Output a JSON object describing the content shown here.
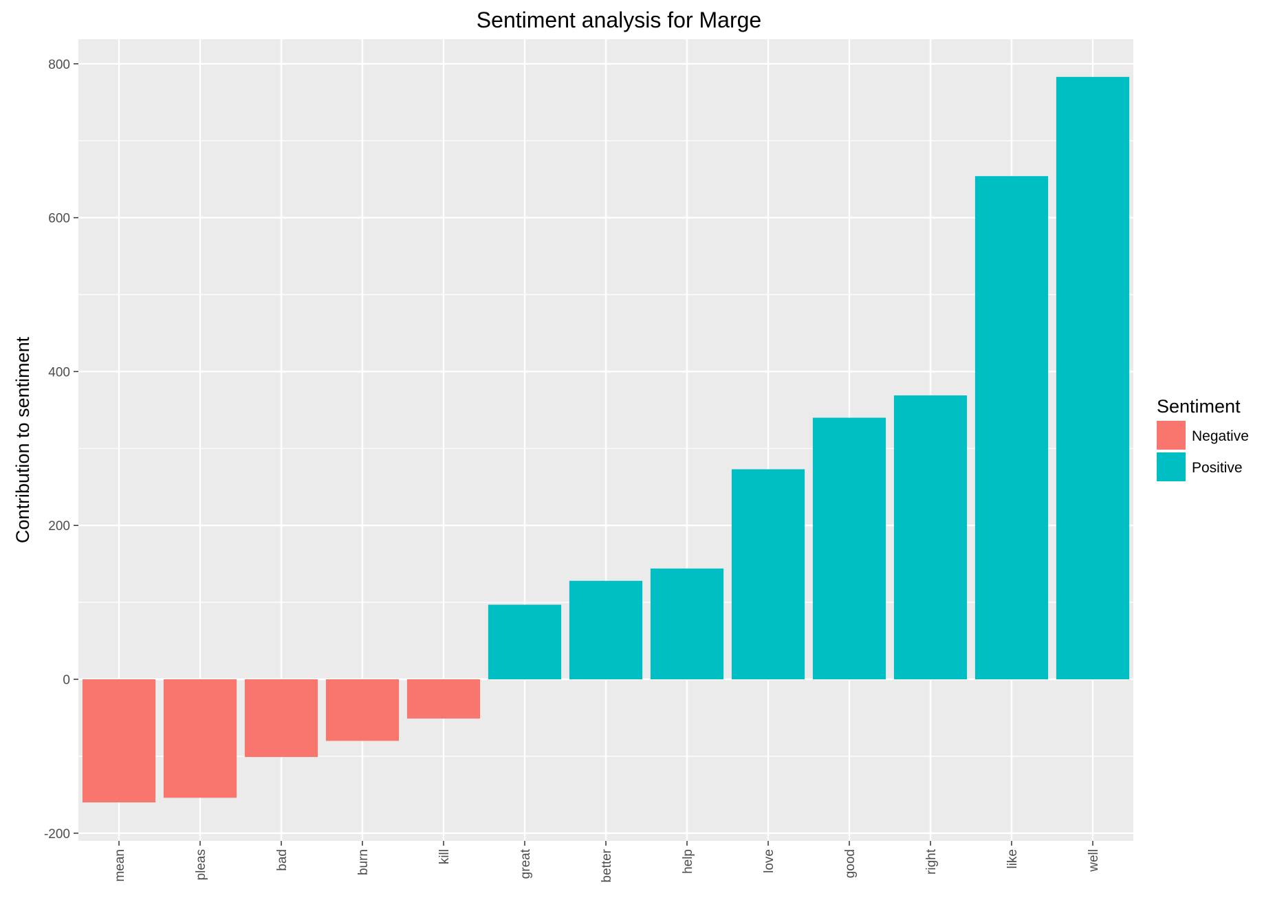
{
  "chart_data": {
    "type": "bar",
    "title": "Sentiment analysis for Marge",
    "xlabel": "",
    "ylabel": "Contribution to sentiment",
    "categories": [
      "mean",
      "pleas",
      "bad",
      "burn",
      "kill",
      "great",
      "better",
      "help",
      "love",
      "good",
      "right",
      "like",
      "well"
    ],
    "values": [
      -160,
      -154,
      -101,
      -80,
      -51,
      97,
      128,
      144,
      273,
      340,
      369,
      654,
      783
    ],
    "sentiment": [
      "Negative",
      "Negative",
      "Negative",
      "Negative",
      "Negative",
      "Positive",
      "Positive",
      "Positive",
      "Positive",
      "Positive",
      "Positive",
      "Positive",
      "Positive"
    ],
    "ylim": [
      -210,
      832
    ],
    "yticks": [
      -200,
      0,
      200,
      400,
      600,
      800
    ],
    "grid": true,
    "legend": {
      "title": "Sentiment",
      "placement": "right",
      "entries": [
        {
          "label": "Negative",
          "color": "#F8766D"
        },
        {
          "label": "Positive",
          "color": "#00BFC4"
        }
      ]
    },
    "colors": {
      "panel": "#EBEBEB",
      "grid": "#FFFFFF",
      "Negative": "#F8766D",
      "Positive": "#00BFC4"
    }
  }
}
